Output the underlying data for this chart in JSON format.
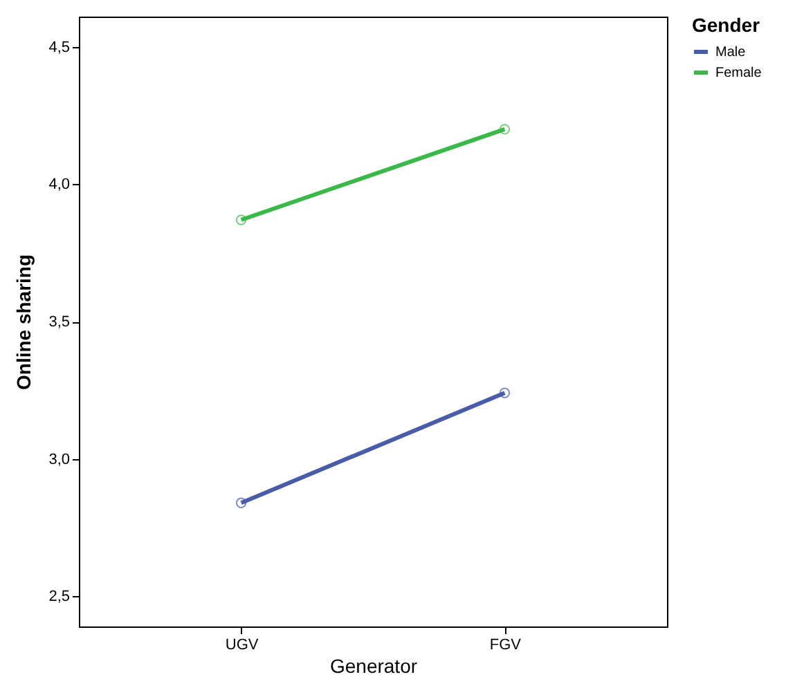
{
  "chart_data": {
    "type": "line",
    "xlabel": "Generator",
    "ylabel": "Online sharing",
    "legend_title": "Gender",
    "categories": [
      "UGV",
      "FGV"
    ],
    "series": [
      {
        "name": "Male",
        "color": "#4a5ba8",
        "values": [
          2.84,
          3.24
        ]
      },
      {
        "name": "Female",
        "color": "#3cb84a",
        "values": [
          3.87,
          4.2
        ]
      }
    ],
    "ylim": [
      2.39,
      4.61
    ],
    "yticks": [
      {
        "value": 2.5,
        "label": "2,5"
      },
      {
        "value": 3.0,
        "label": "3,0"
      },
      {
        "value": 3.5,
        "label": "3,5"
      },
      {
        "value": 4.0,
        "label": "4,0"
      },
      {
        "value": 4.5,
        "label": "4,5"
      }
    ],
    "marker": "circle",
    "legend": "top right",
    "grid": false
  }
}
